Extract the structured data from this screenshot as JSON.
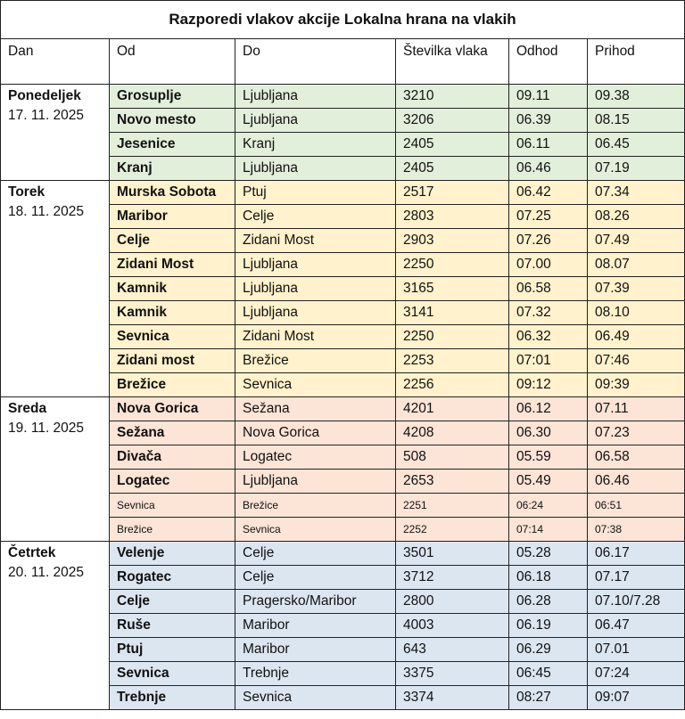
{
  "title": "Razporedi vlakov akcije Lokalna hrana na vlakih",
  "header": [
    "Dan",
    "Od",
    "Do",
    "Številka vlaka",
    "Odhod",
    "Prihod"
  ],
  "groups": [
    {
      "day": "Ponedeljek",
      "date": "17. 11. 2025",
      "rows": [
        [
          "Grosuplje",
          "Ljubljana",
          "3210",
          "09.11",
          "09.38"
        ],
        [
          "Novo mesto",
          "Ljubljana",
          "3206",
          "06.39",
          "08.15"
        ],
        [
          "Jesenice",
          "Kranj",
          "2405",
          "06.11",
          "06.45"
        ],
        [
          "Kranj",
          "Ljubljana",
          "2405",
          "06.46",
          "07.19"
        ]
      ]
    },
    {
      "day": "Torek",
      "date": "18. 11. 2025",
      "rows": [
        [
          "Murska Sobota",
          "Ptuj",
          "2517",
          "06.42",
          "07.34"
        ],
        [
          "Maribor",
          "Celje",
          "2803",
          "07.25",
          "08.26"
        ],
        [
          "Celje",
          "Zidani Most",
          "2903",
          "07.26",
          "07.49"
        ],
        [
          "Zidani Most",
          "Ljubljana",
          "2250",
          "07.00",
          "08.07"
        ],
        [
          "Kamnik",
          "Ljubljana",
          "3165",
          "06.58",
          "07.39"
        ],
        [
          "Kamnik",
          "Ljubljana",
          "3141",
          "07.32",
          "08.10"
        ],
        [
          "Sevnica",
          "Zidani Most",
          "2250",
          "06.32",
          "06.49"
        ],
        [
          "Zidani most",
          "Brežice",
          "2253",
          "07:01",
          "07:46"
        ],
        [
          "Brežice",
          "Sevnica",
          "2256",
          "09:12",
          "09:39"
        ]
      ]
    },
    {
      "day": "Sreda",
      "date": "19. 11. 2025",
      "rows": [
        [
          "Nova Gorica",
          "Sežana",
          "4201",
          "06.12",
          "07.11"
        ],
        [
          "Sežana",
          "Nova Gorica",
          "4208",
          "06.30",
          "07.23"
        ],
        [
          "Divača",
          "Logatec",
          "508",
          "05.59",
          "06.58"
        ],
        [
          "Logatec",
          "Ljubljana",
          "2653",
          "05.49",
          "06.46"
        ],
        [
          "Sevnica",
          "Brežice",
          "2251",
          "06:24",
          "06:51"
        ],
        [
          "Brežice",
          "Sevnica",
          "2252",
          "07:14",
          "07:38"
        ]
      ]
    },
    {
      "day": "Četrtek",
      "date": "20. 11. 2025",
      "rows": [
        [
          "Velenje",
          "Celje",
          "3501",
          "05.28",
          "06.17"
        ],
        [
          "Rogatec",
          "Celje",
          "3712",
          "06.18",
          "07.17"
        ],
        [
          "Celje",
          "Pragersko/Maribor",
          "2800",
          "06.28",
          "07.10/7.28"
        ],
        [
          "Ruše",
          "Maribor",
          "4003",
          "06.19",
          "06.47"
        ],
        [
          "Ptuj",
          "Maribor",
          "643",
          "06.29",
          "07.01"
        ],
        [
          "Sevnica",
          "Trebnje",
          "3375",
          "06:45",
          "07:24"
        ],
        [
          "Trebnje",
          "Sevnica",
          "3374",
          "08:27",
          "09:07"
        ]
      ]
    }
  ]
}
